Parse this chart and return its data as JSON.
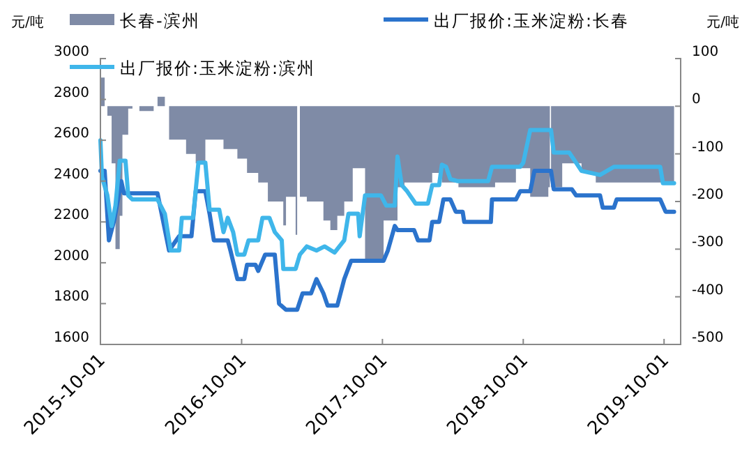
{
  "chart_data": {
    "type": "line",
    "ylabel": "元/吨",
    "y2label": "元/吨",
    "xlim": [
      "2015-10-01",
      "2019-11-13"
    ],
    "xticks": [
      {
        "value": "2015-10-01",
        "label": "2015-10-01"
      },
      {
        "value": "2016-10-01",
        "label": "2016-10-01"
      },
      {
        "value": "2017-10-01",
        "label": "2017-10-01"
      },
      {
        "value": "2018-10-01",
        "label": "2018-10-01"
      },
      {
        "value": "2019-10-01",
        "label": "2019-10-01"
      }
    ],
    "ylim": [
      1600,
      3000
    ],
    "yticks": [
      1600,
      1800,
      2000,
      2200,
      2400,
      2600,
      2800,
      3000
    ],
    "y2lim": [
      -500,
      100
    ],
    "y2ticks": [
      -500,
      -400,
      -300,
      -200,
      -100,
      0,
      100
    ],
    "legend": "top",
    "series": [
      {
        "name": "长春-滨州",
        "type": "area",
        "axis": "y2",
        "color": "#7f8ba6",
        "x": [
          "2015-10-01",
          "2015-10-12",
          "2015-10-19",
          "2015-10-30",
          "2015-11-09",
          "2015-11-20",
          "2015-11-27",
          "2015-12-12",
          "2015-12-23",
          "2016-01-10",
          "2016-02-16",
          "2016-02-26",
          "2016-03-16",
          "2016-03-27",
          "2016-05-10",
          "2016-06-04",
          "2016-06-29",
          "2016-08-15",
          "2016-09-20",
          "2016-10-15",
          "2016-11-13",
          "2016-12-08",
          "2017-01-17",
          "2017-01-24",
          "2017-02-18",
          "2017-02-22",
          "2017-03-01",
          "2017-03-19",
          "2017-05-01",
          "2017-05-19",
          "2017-06-06",
          "2017-06-24",
          "2017-07-16",
          "2017-08-17",
          "2017-10-04",
          "2017-11-09",
          "2017-11-27",
          "2018-02-07",
          "2018-03-04",
          "2018-04-16",
          "2018-07-20",
          "2018-09-12",
          "2018-10-19",
          "2018-12-05",
          "2018-12-09",
          "2018-12-12",
          "2019-01-10",
          "2019-03-01",
          "2019-04-07",
          "2019-10-27"
        ],
        "values": [
          60,
          0,
          -20,
          -120,
          -300,
          -230,
          -60,
          -5,
          0,
          -10,
          0,
          20,
          0,
          -70,
          -100,
          -120,
          -70,
          -90,
          -110,
          -140,
          -160,
          -200,
          -250,
          -190,
          -270,
          0,
          -190,
          -200,
          -240,
          -260,
          -230,
          -200,
          -130,
          -320,
          -240,
          -170,
          -160,
          -140,
          -160,
          -170,
          -160,
          -130,
          -190,
          -170,
          0,
          -170,
          -120,
          -140,
          -160,
          -160
        ]
      },
      {
        "name": "出厂报价:玉米淀粉:长春",
        "color": "#2b73cc",
        "x": [
          "2015-10-01",
          "2015-10-12",
          "2015-10-23",
          "2015-11-06",
          "2015-11-24",
          "2015-12-01",
          "2016-02-26",
          "2016-03-27",
          "2016-04-22",
          "2016-05-24",
          "2016-06-04",
          "2016-06-29",
          "2016-07-10",
          "2016-07-21",
          "2016-08-26",
          "2016-09-02",
          "2016-09-20",
          "2016-10-08",
          "2016-10-15",
          "2016-11-06",
          "2016-11-13",
          "2016-12-01",
          "2016-12-26",
          "2017-01-06",
          "2017-01-24",
          "2017-02-22",
          "2017-03-08",
          "2017-03-30",
          "2017-04-13",
          "2017-05-01",
          "2017-05-12",
          "2017-06-06",
          "2017-06-24",
          "2017-07-12",
          "2017-10-04",
          "2017-10-15",
          "2017-11-02",
          "2017-11-09",
          "2017-12-22",
          "2018-01-01",
          "2018-01-31",
          "2018-02-07",
          "2018-02-25",
          "2018-03-08",
          "2018-03-26",
          "2018-04-09",
          "2018-04-27",
          "2018-05-01",
          "2018-07-09",
          "2018-07-12",
          "2018-09-12",
          "2018-09-23",
          "2018-10-19",
          "2018-10-30",
          "2018-12-12",
          "2018-12-19",
          "2019-02-04",
          "2019-02-15",
          "2019-04-18",
          "2019-04-25",
          "2019-05-24",
          "2019-05-31",
          "2019-09-21",
          "2019-10-05",
          "2019-10-27"
        ],
        "values": [
          2450,
          2450,
          2110,
          2210,
          2400,
          2340,
          2340,
          2060,
          2130,
          2130,
          2350,
          2350,
          2240,
          2110,
          2110,
          2060,
          1920,
          1920,
          1990,
          1990,
          1960,
          2040,
          2040,
          1800,
          1770,
          1770,
          1850,
          1850,
          1920,
          1850,
          1790,
          1790,
          1920,
          2010,
          2010,
          2060,
          2180,
          2160,
          2160,
          2110,
          2110,
          2200,
          2200,
          2310,
          2310,
          2250,
          2250,
          2200,
          2200,
          2310,
          2310,
          2350,
          2350,
          2450,
          2450,
          2360,
          2360,
          2330,
          2330,
          2270,
          2270,
          2310,
          2310,
          2250,
          2250
        ]
      },
      {
        "name": "出厂报价:玉米淀粉:滨州",
        "color": "#3fb6ea",
        "x": [
          "2015-10-01",
          "2015-10-05",
          "2015-10-19",
          "2015-10-30",
          "2015-11-09",
          "2015-11-20",
          "2015-12-05",
          "2015-12-12",
          "2015-12-23",
          "2016-02-26",
          "2016-03-16",
          "2016-03-31",
          "2016-04-22",
          "2016-04-29",
          "2016-05-28",
          "2016-06-11",
          "2016-06-29",
          "2016-07-10",
          "2016-08-04",
          "2016-08-15",
          "2016-08-26",
          "2016-09-09",
          "2016-09-20",
          "2016-10-08",
          "2016-10-19",
          "2016-11-13",
          "2016-11-24",
          "2016-12-12",
          "2016-12-26",
          "2017-01-13",
          "2017-01-17",
          "2017-02-18",
          "2017-03-01",
          "2017-03-19",
          "2017-04-13",
          "2017-05-04",
          "2017-05-30",
          "2017-06-24",
          "2017-07-05",
          "2017-07-30",
          "2017-08-03",
          "2017-08-17",
          "2017-09-27",
          "2017-10-11",
          "2017-11-02",
          "2017-11-09",
          "2017-11-20",
          "2017-12-04",
          "2017-12-26",
          "2018-01-27",
          "2018-02-07",
          "2018-02-25",
          "2018-03-04",
          "2018-03-15",
          "2018-03-26",
          "2018-04-13",
          "2018-07-02",
          "2018-07-12",
          "2018-09-23",
          "2018-10-01",
          "2018-10-19",
          "2018-12-12",
          "2018-12-19",
          "2019-01-28",
          "2019-02-15",
          "2019-03-01",
          "2019-04-18",
          "2019-05-24",
          "2019-09-21",
          "2019-09-28",
          "2019-10-27"
        ],
        "values": [
          2600,
          2420,
          2330,
          2180,
          2280,
          2500,
          2500,
          2330,
          2310,
          2310,
          2240,
          2060,
          2060,
          2220,
          2220,
          2490,
          2490,
          2260,
          2260,
          2150,
          2220,
          2150,
          2040,
          2040,
          2110,
          2110,
          2220,
          2220,
          2150,
          2110,
          1970,
          1970,
          2040,
          2080,
          2060,
          2080,
          2050,
          2110,
          2240,
          2240,
          2130,
          2330,
          2330,
          2280,
          2280,
          2520,
          2380,
          2350,
          2290,
          2290,
          2380,
          2380,
          2480,
          2470,
          2410,
          2400,
          2400,
          2470,
          2470,
          2490,
          2650,
          2650,
          2540,
          2540,
          2490,
          2450,
          2430,
          2470,
          2470,
          2390,
          2390
        ]
      }
    ]
  }
}
